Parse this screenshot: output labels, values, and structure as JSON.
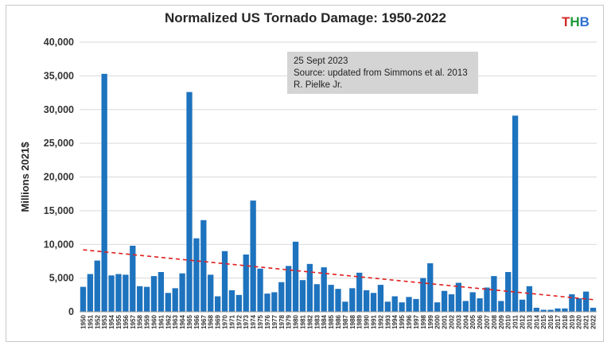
{
  "logo": {
    "t": "T",
    "h": "H",
    "b": "B"
  },
  "annotation": [
    "25 Sept 2023",
    "Source: updated from Simmons et al. 2013",
    "R. Pielke Jr."
  ],
  "colors": {
    "bar": "#1e73be",
    "trend": "#e02020",
    "grid": "#d9d9d9"
  },
  "chart_data": {
    "type": "bar",
    "title": "Normalized US Tornado Damage: 1950-2022",
    "xlabel": "",
    "ylabel": "Millions 2021$",
    "ylim": [
      0,
      40000
    ],
    "yticks": [
      0,
      5000,
      10000,
      15000,
      20000,
      25000,
      30000,
      35000,
      40000
    ],
    "ytick_labels": [
      "0",
      "5,000",
      "10,000",
      "15,000",
      "20,000",
      "25,000",
      "30,000",
      "35,000",
      "40,000"
    ],
    "grid": "horizontal",
    "categories": [
      "1950",
      "1951",
      "1952",
      "1953",
      "1954",
      "1955",
      "1956",
      "1957",
      "1958",
      "1959",
      "1960",
      "1961",
      "1962",
      "1963",
      "1964",
      "1965",
      "1966",
      "1967",
      "1968",
      "1969",
      "1970",
      "1971",
      "1972",
      "1973",
      "1974",
      "1975",
      "1976",
      "1977",
      "1978",
      "1979",
      "1980",
      "1981",
      "1982",
      "1983",
      "1984",
      "1985",
      "1986",
      "1987",
      "1988",
      "1989",
      "1990",
      "1991",
      "1992",
      "1993",
      "1994",
      "1995",
      "1996",
      "1997",
      "1998",
      "1999",
      "2000",
      "2001",
      "2002",
      "2003",
      "2004",
      "2005",
      "2006",
      "2007",
      "2008",
      "2009",
      "2010",
      "2011",
      "2012",
      "2013",
      "2014",
      "2015",
      "2016",
      "2017",
      "2018",
      "2019",
      "2020",
      "2021",
      "2022"
    ],
    "values": [
      3700,
      5600,
      7600,
      35300,
      5400,
      5600,
      5500,
      9800,
      3800,
      3700,
      5300,
      5900,
      2800,
      3500,
      5700,
      32600,
      10900,
      13600,
      5500,
      2300,
      9000,
      3200,
      2500,
      8500,
      16500,
      6400,
      2700,
      2900,
      4400,
      6800,
      10400,
      4700,
      7100,
      4100,
      6600,
      4000,
      3400,
      1500,
      3500,
      5800,
      3200,
      2800,
      4000,
      1500,
      2300,
      1400,
      2200,
      1900,
      5000,
      7200,
      1400,
      3100,
      2600,
      4300,
      1600,
      2900,
      2000,
      3600,
      5300,
      1600,
      5900,
      29100,
      1800,
      3800,
      600,
      300,
      300,
      500,
      500,
      2600,
      2000,
      3000,
      600
    ],
    "trend": {
      "style": "dashed",
      "start": [
        1950,
        9200
      ],
      "end": [
        2022,
        1800
      ]
    }
  }
}
